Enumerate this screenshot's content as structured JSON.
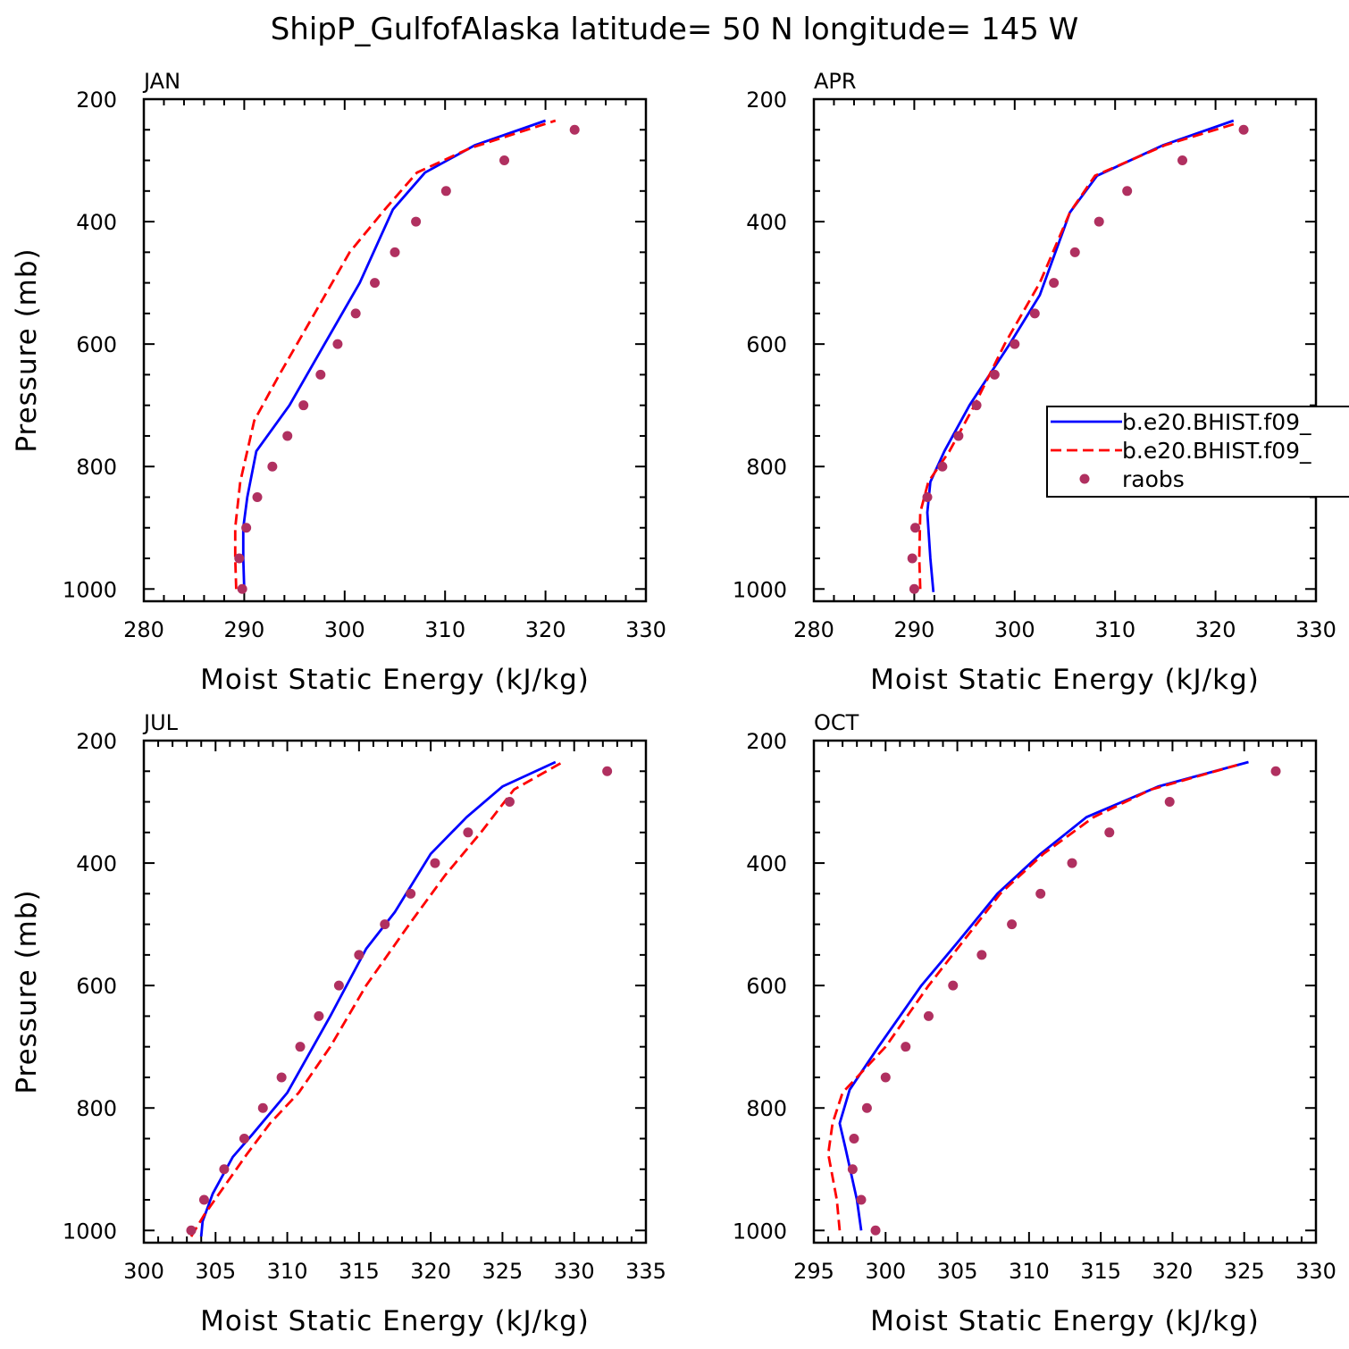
{
  "title": "ShipP_GulfofAlaska  latitude= 50 N longitude= 145 W",
  "legend": {
    "entries": [
      {
        "label": "b.e20.BHIST.f09_",
        "style": "solid",
        "color": "#0000ff"
      },
      {
        "label": "b.e20.BHIST.f09_",
        "style": "dashed",
        "color": "#ff0000"
      },
      {
        "label": "raobs",
        "style": "dots",
        "color": "#b03060"
      }
    ]
  },
  "chart_data": [
    {
      "type": "line",
      "panel": "JAN",
      "title": "JAN",
      "xlabel": "Moist Static Energy (kJ/kg)",
      "ylabel": "Pressure (mb)",
      "xlim": [
        280,
        330
      ],
      "ylim": [
        1020,
        200
      ],
      "xticks": [
        280,
        290,
        300,
        310,
        320,
        330
      ],
      "yticks": [
        200,
        400,
        600,
        800,
        1000
      ],
      "series": [
        {
          "name": "b.e20.BHIST.f09_ (solid)",
          "color": "#0000ff",
          "style": "solid",
          "x": [
            290.0,
            289.9,
            289.9,
            290.3,
            291.2,
            294.5,
            298.0,
            301.5,
            304.8,
            308.0,
            313.0,
            320.0
          ],
          "y": [
            1000,
            950,
            900,
            850,
            775,
            700,
            600,
            500,
            380,
            320,
            275,
            235
          ]
        },
        {
          "name": "b.e20.BHIST.f09_ (dashed)",
          "color": "#ff0000",
          "style": "dashed",
          "x": [
            289.2,
            289.1,
            289.1,
            289.6,
            291.0,
            293.5,
            297.0,
            300.5,
            304.0,
            307.2,
            312.5,
            321.0
          ],
          "y": [
            1000,
            950,
            900,
            825,
            725,
            650,
            550,
            450,
            380,
            320,
            280,
            235
          ]
        },
        {
          "name": "raobs",
          "color": "#b03060",
          "style": "dots",
          "x": [
            289.8,
            289.5,
            290.2,
            291.3,
            292.8,
            294.3,
            295.9,
            297.6,
            299.3,
            301.1,
            303.0,
            305.0,
            307.1,
            310.1,
            315.9,
            322.9
          ],
          "y": [
            1000,
            950,
            900,
            850,
            800,
            750,
            700,
            650,
            600,
            550,
            500,
            450,
            400,
            350,
            300,
            250
          ]
        }
      ]
    },
    {
      "type": "line",
      "panel": "APR",
      "title": "APR",
      "xlabel": "Moist Static Energy (kJ/kg)",
      "ylabel": "",
      "xlim": [
        280,
        330
      ],
      "ylim": [
        1020,
        200
      ],
      "xticks": [
        280,
        290,
        300,
        310,
        320,
        330
      ],
      "yticks": [
        200,
        400,
        600,
        800,
        1000
      ],
      "series": [
        {
          "name": "b.e20.BHIST.f09_ (solid)",
          "color": "#0000ff",
          "style": "solid",
          "x": [
            291.9,
            291.6,
            291.3,
            291.6,
            293.0,
            295.5,
            299.5,
            302.5,
            305.5,
            308.2,
            314.8,
            321.8
          ],
          "y": [
            1005,
            950,
            875,
            825,
            775,
            700,
            600,
            520,
            385,
            325,
            275,
            235
          ]
        },
        {
          "name": "b.e20.BHIST.f09_ (dashed)",
          "color": "#ff0000",
          "style": "dashed",
          "x": [
            290.6,
            290.5,
            290.6,
            291.4,
            293.5,
            296.0,
            299.0,
            302.5,
            305.5,
            308.0,
            315.0,
            322.0
          ],
          "y": [
            1000,
            950,
            875,
            825,
            775,
            700,
            600,
            500,
            385,
            325,
            275,
            240
          ]
        },
        {
          "name": "raobs",
          "color": "#b03060",
          "style": "dots",
          "x": [
            290.0,
            289.8,
            290.1,
            291.3,
            292.8,
            294.4,
            296.2,
            298.0,
            300.0,
            302.0,
            303.9,
            306.0,
            308.4,
            311.2,
            316.7,
            322.8
          ],
          "y": [
            1000,
            950,
            900,
            850,
            800,
            750,
            700,
            650,
            600,
            550,
            500,
            450,
            400,
            350,
            300,
            250
          ]
        }
      ]
    },
    {
      "type": "line",
      "panel": "JUL",
      "title": "JUL",
      "xlabel": "Moist Static Energy (kJ/kg)",
      "ylabel": "Pressure (mb)",
      "xlim": [
        300,
        335
      ],
      "ylim": [
        1020,
        200
      ],
      "xticks": [
        300,
        305,
        310,
        315,
        320,
        325,
        330,
        335
      ],
      "yticks": [
        200,
        400,
        600,
        800,
        1000
      ],
      "series": [
        {
          "name": "b.e20.BHIST.f09_ (solid)",
          "color": "#0000ff",
          "style": "solid",
          "x": [
            304.0,
            304.1,
            304.8,
            306.2,
            307.5,
            310.0,
            313.0,
            315.5,
            317.5,
            320.0,
            322.5,
            325.0,
            328.7
          ],
          "y": [
            1010,
            985,
            940,
            880,
            845,
            775,
            650,
            540,
            480,
            385,
            325,
            275,
            235
          ]
        },
        {
          "name": "b.e20.BHIST.f09_ (dashed)",
          "color": "#ff0000",
          "style": "dashed",
          "x": [
            303.3,
            304.2,
            305.7,
            307.2,
            308.8,
            310.8,
            313.0,
            315.5,
            318.5,
            321.0,
            323.5,
            325.8,
            329.2
          ],
          "y": [
            1010,
            975,
            925,
            875,
            825,
            775,
            700,
            600,
            500,
            420,
            350,
            280,
            235
          ]
        },
        {
          "name": "raobs",
          "color": "#b03060",
          "style": "dots",
          "x": [
            303.3,
            304.2,
            305.6,
            307.0,
            308.3,
            309.6,
            310.9,
            312.2,
            313.6,
            315.0,
            316.8,
            318.6,
            320.3,
            322.6,
            325.5,
            332.3
          ],
          "y": [
            1000,
            950,
            900,
            850,
            800,
            750,
            700,
            650,
            600,
            550,
            500,
            450,
            400,
            350,
            300,
            250
          ]
        }
      ]
    },
    {
      "type": "line",
      "panel": "OCT",
      "title": "OCT",
      "xlabel": "Moist Static Energy (kJ/kg)",
      "ylabel": "",
      "xlim": [
        295,
        330
      ],
      "ylim": [
        1020,
        200
      ],
      "xticks": [
        295,
        300,
        305,
        310,
        315,
        320,
        325,
        330
      ],
      "yticks": [
        200,
        400,
        600,
        800,
        1000
      ],
      "series": [
        {
          "name": "b.e20.BHIST.f09_ (solid)",
          "color": "#0000ff",
          "style": "solid",
          "x": [
            298.3,
            298.0,
            297.2,
            296.8,
            297.5,
            299.5,
            302.5,
            305.0,
            307.8,
            310.8,
            314.0,
            319.0,
            325.3
          ],
          "y": [
            1000,
            950,
            865,
            825,
            770,
            700,
            600,
            530,
            450,
            385,
            325,
            275,
            235
          ]
        },
        {
          "name": "b.e20.BHIST.f09_ (dashed)",
          "color": "#ff0000",
          "style": "dashed",
          "x": [
            296.8,
            296.6,
            296.2,
            296.0,
            296.3,
            297.0,
            300.0,
            303.0,
            305.5,
            308.0,
            311.0,
            314.5,
            318.5,
            324.5
          ],
          "y": [
            1000,
            950,
            900,
            875,
            825,
            775,
            700,
            600,
            525,
            450,
            385,
            325,
            280,
            240
          ]
        },
        {
          "name": "raobs",
          "color": "#b03060",
          "style": "dots",
          "x": [
            299.3,
            298.3,
            297.7,
            297.8,
            298.7,
            300.0,
            301.4,
            303.0,
            304.7,
            306.7,
            308.8,
            310.8,
            313.0,
            315.6,
            319.8,
            327.2
          ],
          "y": [
            1000,
            950,
            900,
            850,
            800,
            750,
            700,
            650,
            600,
            550,
            500,
            450,
            400,
            350,
            300,
            250
          ]
        }
      ]
    }
  ]
}
